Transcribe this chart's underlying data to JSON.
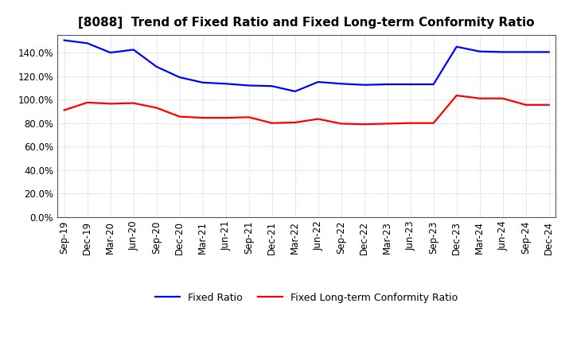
{
  "title": "[8088]  Trend of Fixed Ratio and Fixed Long-term Conformity Ratio",
  "x_labels": [
    "Sep-19",
    "Dec-19",
    "Mar-20",
    "Jun-20",
    "Sep-20",
    "Dec-20",
    "Mar-21",
    "Jun-21",
    "Sep-21",
    "Dec-21",
    "Mar-22",
    "Jun-22",
    "Sep-22",
    "Dec-22",
    "Mar-23",
    "Jun-23",
    "Sep-23",
    "Dec-23",
    "Mar-24",
    "Jun-24",
    "Sep-24",
    "Dec-24"
  ],
  "fixed_ratio": [
    150.5,
    148.0,
    140.0,
    142.5,
    128.0,
    119.0,
    114.5,
    113.5,
    112.0,
    111.5,
    107.0,
    115.0,
    113.5,
    112.5,
    113.0,
    113.0,
    113.0,
    145.0,
    141.0,
    140.5,
    140.5,
    140.5
  ],
  "fixed_lt_ratio": [
    91.0,
    97.5,
    96.5,
    97.0,
    93.0,
    85.5,
    84.5,
    84.5,
    85.0,
    80.0,
    80.5,
    83.5,
    79.5,
    79.0,
    79.5,
    80.0,
    80.0,
    103.5,
    101.0,
    101.0,
    95.5,
    95.5
  ],
  "fixed_ratio_color": "#0000FF",
  "fixed_lt_ratio_color": "#FF0000",
  "ylim": [
    0,
    155
  ],
  "yticks": [
    0,
    20,
    40,
    60,
    80,
    100,
    120,
    140
  ],
  "ytick_labels": [
    "0.0%",
    "20.0%",
    "40.0%",
    "60.0%",
    "80.0%",
    "100.0%",
    "120.0%",
    "140.0%"
  ],
  "grid_color": "#888888",
  "background_color": "#ffffff",
  "legend_fixed_ratio": "Fixed Ratio",
  "legend_fixed_lt_ratio": "Fixed Long-term Conformity Ratio",
  "title_fontsize": 11,
  "axis_fontsize": 8.5,
  "legend_fontsize": 9
}
